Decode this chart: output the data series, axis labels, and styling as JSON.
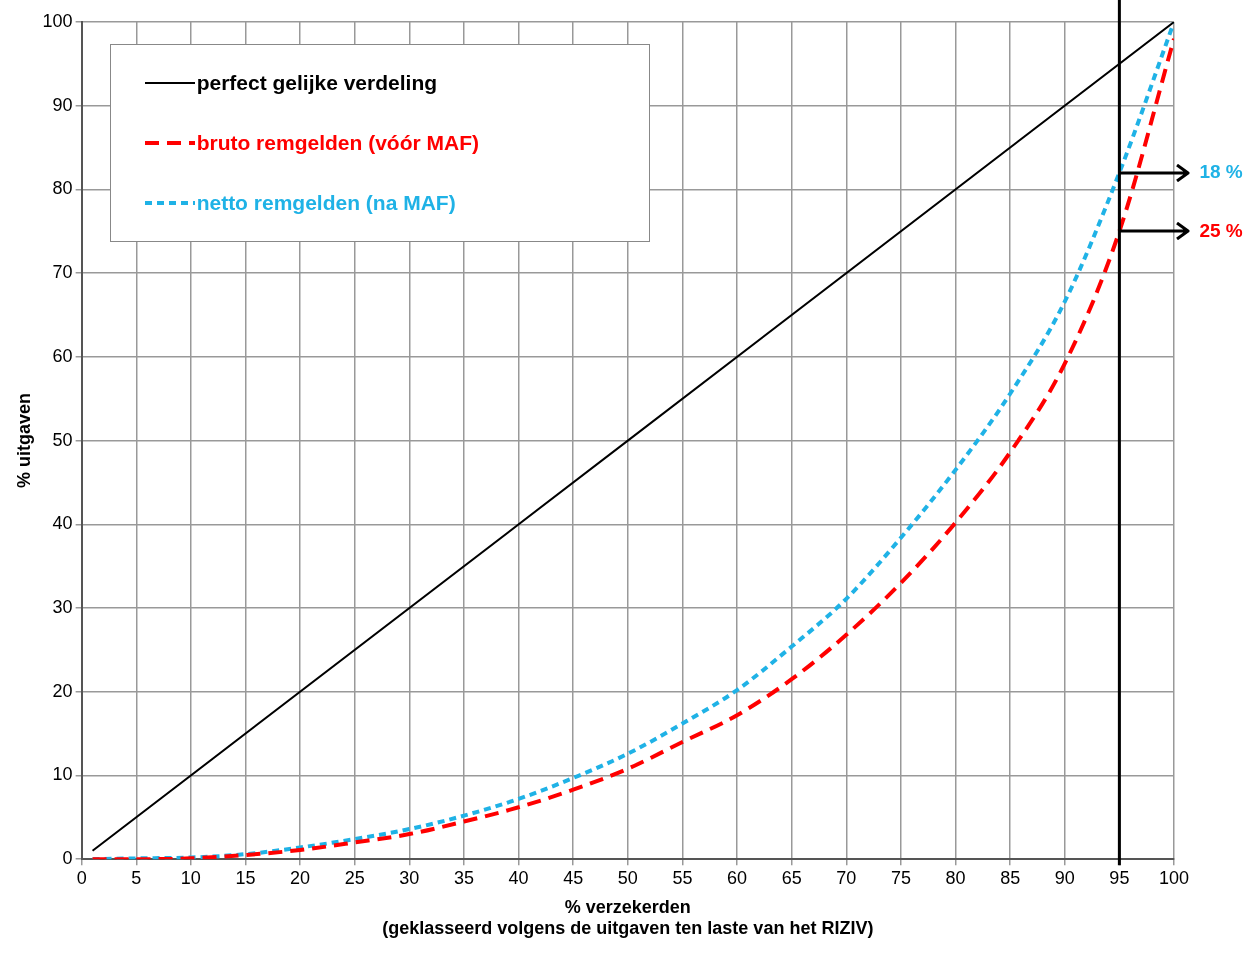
{
  "chart_data": {
    "type": "line",
    "xlabel": "% verzekerden\n(geklasseerd volgens de uitgaven ten laste van het RIZIV)",
    "ylabel": "% uitgaven",
    "xlim": [
      0,
      100
    ],
    "xticks": [
      0,
      5,
      10,
      15,
      20,
      25,
      30,
      35,
      40,
      45,
      50,
      55,
      60,
      65,
      70,
      75,
      80,
      85,
      90,
      95,
      100
    ],
    "ylim": [
      0,
      100
    ],
    "yticks": [
      0,
      10,
      20,
      30,
      40,
      50,
      60,
      70,
      80,
      90,
      100
    ],
    "grid": true,
    "legend": "top left",
    "marker": "none",
    "series": [
      {
        "name": "perfect gelijke verdeling",
        "color": "#000000",
        "line_style": "solid",
        "x": [
          1,
          100
        ],
        "values": [
          1,
          100
        ]
      },
      {
        "name": "bruto remgelden (vóór MAF)",
        "color": "#ff0000",
        "line_style": "dashed",
        "x": [
          1,
          5,
          10,
          15,
          20,
          25,
          30,
          35,
          40,
          45,
          50,
          55,
          60,
          65,
          70,
          75,
          80,
          85,
          90,
          95,
          100
        ],
        "values": [
          0,
          0,
          0.1,
          0.5,
          1.1,
          2.0,
          3.0,
          4.5,
          6.2,
          8.3,
          10.8,
          14,
          17.2,
          21.5,
          26.8,
          33,
          40.2,
          48.6,
          59.2,
          75,
          98
        ]
      },
      {
        "name": "netto remgelden (na MAF)",
        "color": "#1fb2e6",
        "line_style": "dotted",
        "x": [
          1,
          5,
          10,
          15,
          20,
          25,
          30,
          35,
          40,
          45,
          50,
          55,
          60,
          65,
          70,
          75,
          80,
          85,
          90,
          95,
          100
        ],
        "values": [
          0,
          0.1,
          0.2,
          0.6,
          1.4,
          2.4,
          3.6,
          5.2,
          7.2,
          9.7,
          12.6,
          16.2,
          20.2,
          25.4,
          31.1,
          38.4,
          46.5,
          55.6,
          66.6,
          82,
          100
        ]
      }
    ],
    "ref_lines": [
      {
        "axis": "x",
        "value": 95,
        "color": "#000000"
      }
    ],
    "annotations": [
      "18 %",
      "25 %"
    ]
  }
}
